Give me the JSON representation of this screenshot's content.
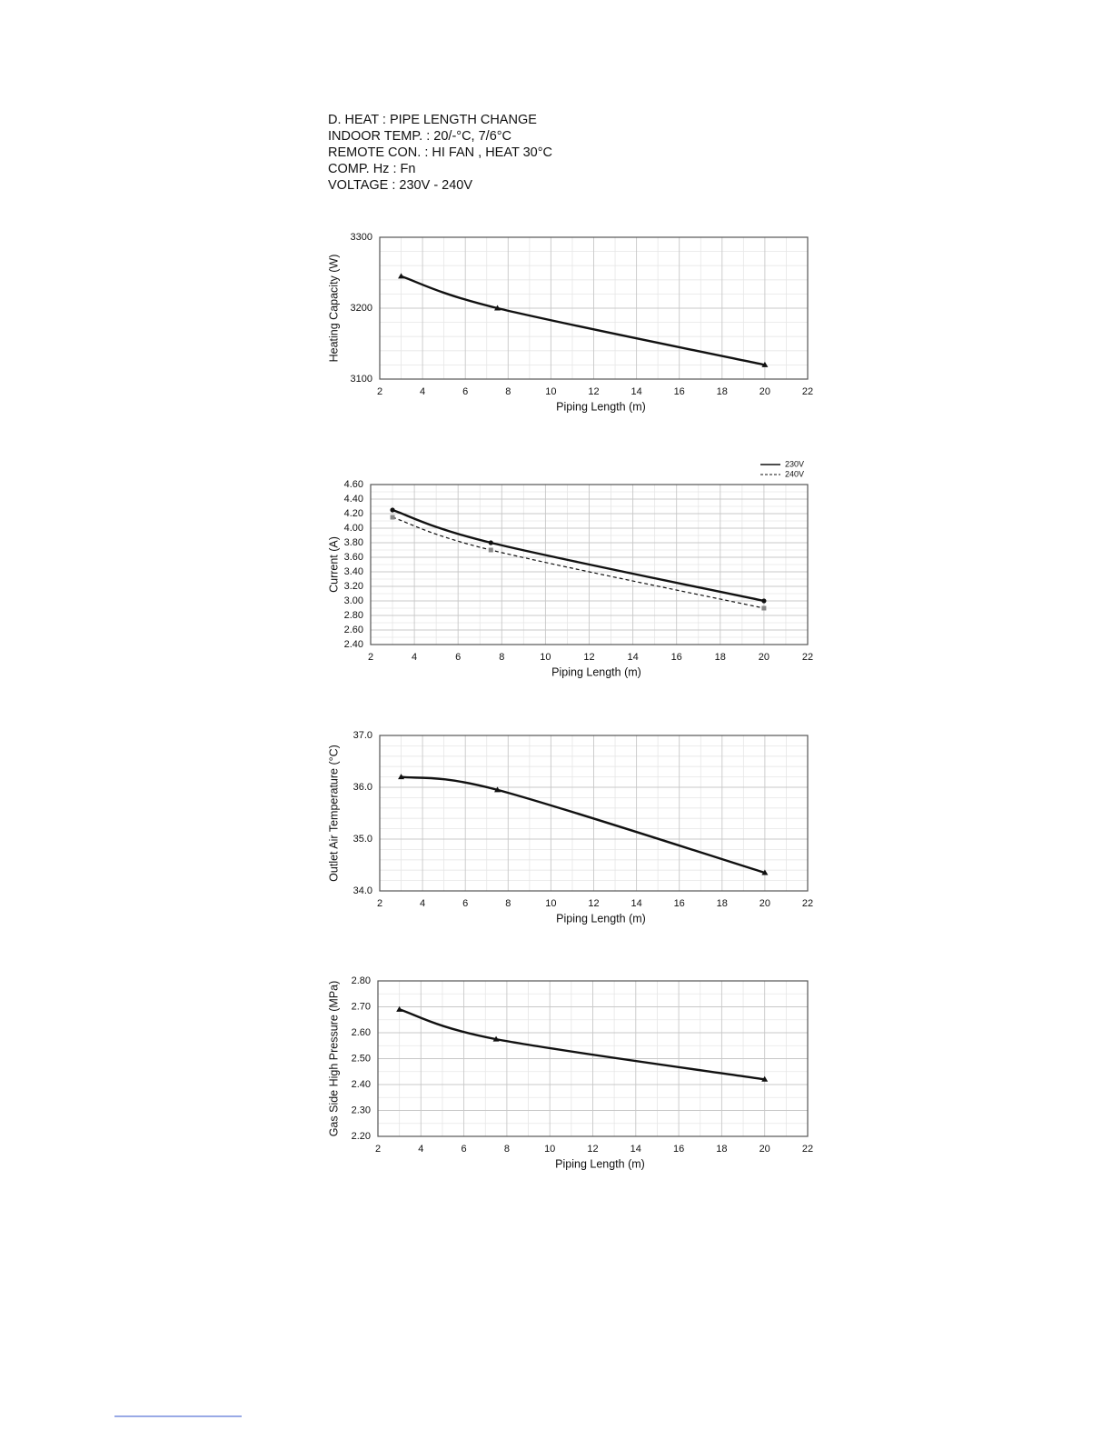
{
  "header": {
    "lines": [
      "D. HEAT : PIPE LENGTH CHANGE",
      "INDOOR TEMP. : 20/-°C, 7/6°C",
      "REMOTE CON. : HI FAN , HEAT 30°C",
      "COMP. Hz : Fn",
      "VOLTAGE : 230V - 240V"
    ]
  },
  "chart_data": [
    {
      "type": "line",
      "xlabel": "Piping Length (m)",
      "ylabel": "Heating Capacity (W)",
      "x": [
        3,
        7.5,
        20
      ],
      "values": [
        3245,
        3200,
        3120
      ],
      "color": "#111111",
      "marker": "triangle",
      "xlim": [
        2,
        22
      ],
      "xticks": [
        2,
        4,
        6,
        8,
        10,
        12,
        14,
        16,
        18,
        20,
        22
      ],
      "ylim": [
        3100,
        3300
      ],
      "yticks": [
        3100,
        3200,
        3300
      ],
      "grid": true
    },
    {
      "type": "line",
      "xlabel": "Piping Length (m)",
      "ylabel": "Current (A)",
      "x": [
        3,
        7.5,
        20
      ],
      "series": [
        {
          "name": "230V",
          "color": "#111111",
          "line_style": "solid",
          "marker": "circle",
          "values": [
            4.25,
            3.8,
            3.0
          ]
        },
        {
          "name": "240V",
          "color": "#111111",
          "line_style": "dashed",
          "marker": "square",
          "values": [
            4.15,
            3.7,
            2.9
          ]
        }
      ],
      "legend": "top-right",
      "xlim": [
        2,
        22
      ],
      "xticks": [
        2,
        4,
        6,
        8,
        10,
        12,
        14,
        16,
        18,
        20,
        22
      ],
      "ylim": [
        2.4,
        4.6
      ],
      "yticks": [
        {
          "value": 2.4,
          "label": "2.40"
        },
        {
          "value": 2.6,
          "label": "2.60"
        },
        {
          "value": 2.8,
          "label": "2.80"
        },
        {
          "value": 3.0,
          "label": "3.00"
        },
        {
          "value": 3.2,
          "label": "3.20"
        },
        {
          "value": 3.4,
          "label": "3.40"
        },
        {
          "value": 3.6,
          "label": "3.60"
        },
        {
          "value": 3.8,
          "label": "3.80"
        },
        {
          "value": 4.0,
          "label": "4.00"
        },
        {
          "value": 4.2,
          "label": "4.20"
        },
        {
          "value": 4.4,
          "label": "4.40"
        },
        {
          "value": 4.6,
          "label": "4.60"
        }
      ],
      "grid": true
    },
    {
      "type": "line",
      "xlabel": "Piping Length (m)",
      "ylabel": "Outlet Air Temperature (°C)",
      "x": [
        3,
        7.5,
        20
      ],
      "values": [
        36.2,
        35.95,
        34.35
      ],
      "color": "#111111",
      "marker": "triangle",
      "xlim": [
        2,
        22
      ],
      "xticks": [
        2,
        4,
        6,
        8,
        10,
        12,
        14,
        16,
        18,
        20,
        22
      ],
      "ylim": [
        34,
        37
      ],
      "yticks": [
        {
          "value": 34,
          "label": "34.0"
        },
        {
          "value": 35,
          "label": "35.0"
        },
        {
          "value": 36,
          "label": "36.0"
        },
        {
          "value": 37,
          "label": "37.0"
        }
      ],
      "grid": true
    },
    {
      "type": "line",
      "xlabel": "Piping Length (m)",
      "ylabel": "Gas Side High Pressure (MPa)",
      "x": [
        3,
        7.5,
        20
      ],
      "values": [
        2.69,
        2.575,
        2.42
      ],
      "color": "#111111",
      "marker": "triangle",
      "xlim": [
        2,
        22
      ],
      "xticks": [
        2,
        4,
        6,
        8,
        10,
        12,
        14,
        16,
        18,
        20,
        22
      ],
      "ylim": [
        2.2,
        2.8
      ],
      "yticks": [
        {
          "value": 2.2,
          "label": "2.20"
        },
        {
          "value": 2.3,
          "label": "2.30"
        },
        {
          "value": 2.4,
          "label": "2.40"
        },
        {
          "value": 2.5,
          "label": "2.50"
        },
        {
          "value": 2.6,
          "label": "2.60"
        },
        {
          "value": 2.7,
          "label": "2.70"
        },
        {
          "value": 2.8,
          "label": "2.80"
        }
      ],
      "grid": true
    }
  ]
}
